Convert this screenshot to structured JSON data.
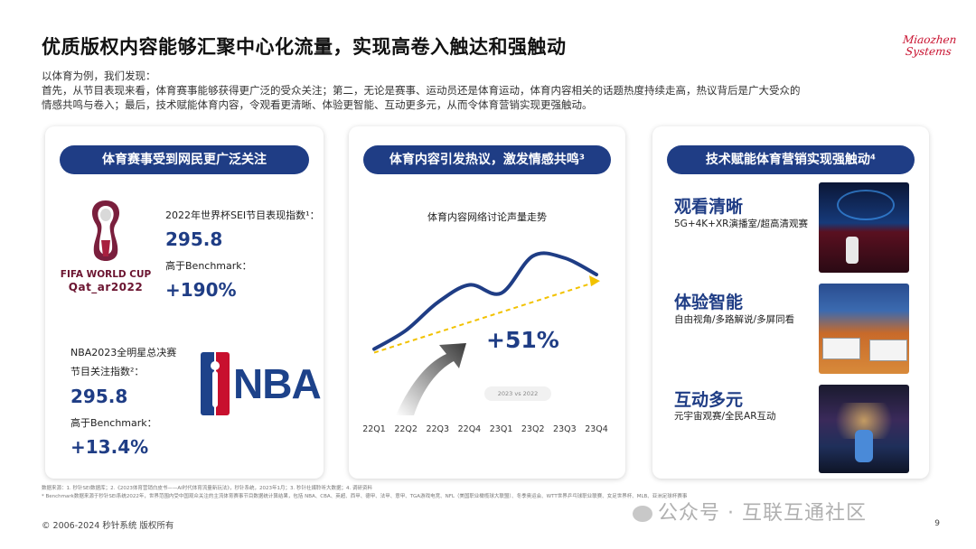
{
  "title": "优质版权内容能够汇聚中心化流量，实现高卷入触达和强触动",
  "logo": {
    "line1": "Miaozhen",
    "line2": "Systems"
  },
  "intro": {
    "line1": "以体育为例，我们发现：",
    "line2": "首先，从节目表现来看，体育赛事能够获得更广泛的受众关注；第二，无论是赛事、运动员还是体育运动，体育内容相关的话题热度持续走高，热议背后是广大受众的",
    "line3": "情感共鸣与卷入；最后，技术赋能体育内容，令观看更清晰、体验更智能、互动更多元，从而令体育营销实现更强触动。"
  },
  "card1": {
    "header": "体育赛事受到网民更广泛关注",
    "wc_logo_line1": "FIFA WORLD CUP",
    "wc_logo_line2": "Qat_ar2022",
    "wc_label": "2022年世界杯SEI节目表现指数¹：",
    "wc_value": "295.8",
    "wc_bench_label": "高于Benchmark：",
    "wc_bench_value": "+190%",
    "nba_label1": "NBA2023全明星总决赛",
    "nba_label2": "节目关注指数²：",
    "nba_value": "295.8",
    "nba_bench_label": "高于Benchmark：",
    "nba_bench_value": "+13.4%",
    "nba_logo_text": "NBA"
  },
  "card2": {
    "header": "体育内容引发热议，激发情感共鸣³",
    "chart_title": "体育内容网络讨论声量走势",
    "growth": "+51%",
    "compare_badge": "2023 vs 2022"
  },
  "chart_data": {
    "type": "line",
    "title": "体育内容网络讨论声量走势",
    "categories": [
      "22Q1",
      "22Q2",
      "22Q3",
      "22Q4",
      "23Q1",
      "23Q2",
      "23Q3",
      "23Q4"
    ],
    "series": [
      {
        "values": [
          10,
          28,
          55,
          72,
          64,
          100,
          98,
          82
        ]
      }
    ],
    "annotation": "+51%",
    "ylim": [
      0,
      110
    ],
    "grid": false,
    "colors": {
      "line": "#1f3d85",
      "trend": "#f2c200"
    }
  },
  "card3": {
    "header": "技术赋能体育营销实现强触动⁴",
    "features": [
      {
        "title": "观看清晰",
        "desc": "5G+4K+XR演播室/超高清观赛"
      },
      {
        "title": "体验智能",
        "desc": "自由视角/多路解说/多屏同看"
      },
      {
        "title": "互动多元",
        "desc": "元宇宙观赛/全民AR互动"
      }
    ]
  },
  "footer": {
    "note1": "数据来源：1. 秒针SEI数据库；2.《2023体育营销白皮书——AI时代体育流量新玩法》，秒针系统，2023年1月；3. 秒针社媒聆听大数据；4. 调研资料",
    "note2": "* Benchmark数据来源于秒针SEI系统2022年，世界范围内受中国观众关注的主流体育赛事节目数据统计算结果，包括 NBA、CBA、英超、西甲、德甲、法甲、意甲、TGA游戏电竞、NFL（美国职业橄榄球大联盟）、冬季奥运会、WTT世界乒乓球职业联赛、女足世界杯、MLB、亚洲足球杯赛事",
    "copyright": "© 2006-2024 秒针系统 版权所有",
    "watermark": "公众号 · 互联互通社区",
    "page": "9"
  },
  "colors": {
    "brand_blue": "#1f3d85",
    "logo_red": "#c8102e",
    "trend_yellow": "#f2c200"
  }
}
